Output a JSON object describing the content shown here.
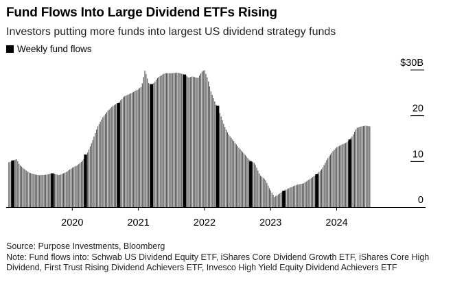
{
  "header": {
    "title": "Fund Flows Into Large Dividend ETFs Rising",
    "subtitle": "Investors putting more funds into largest US dividend strategy funds"
  },
  "legend": {
    "label": "Weekly fund flows",
    "color": "#000000"
  },
  "footer": {
    "source": "Source: Purpose Investments, Bloomberg",
    "note": "Note: Fund flows into: Schwab US Dividend Equity ETF, iShares Core Dividend Growth ETF, iShares Core High Dividend, First Trust Rising Dividend Achievers ETF, Invesco High Yield Equity Dividend Achievers ETF"
  },
  "chart_data": {
    "type": "bar",
    "title": "Fund Flows Into Large Dividend ETFs Rising",
    "subtitle": "Investors putting more funds into largest US dividend strategy funds",
    "xlabel": "",
    "ylabel": "",
    "y_unit": "$B",
    "ylim": [
      0,
      30
    ],
    "yticks": [
      0,
      10,
      20,
      30
    ],
    "ytick_labels": [
      "0",
      "10",
      "20",
      "$30B"
    ],
    "xlim": [
      2019.0,
      2024.95
    ],
    "xticks": [
      2020,
      2021,
      2022,
      2023,
      2024
    ],
    "xtick_labels": [
      "2020",
      "2021",
      "2022",
      "2023",
      "2024"
    ],
    "bar_color": "#555555",
    "highlight_color": "#000000",
    "grid": false,
    "legend_position": "top-left",
    "series": [
      {
        "name": "Weekly fund flows",
        "points": [
          [
            2019.04,
            9.8
          ],
          [
            2019.1,
            10.2
          ],
          [
            2019.16,
            10.5
          ],
          [
            2019.2,
            9.3
          ],
          [
            2019.26,
            8.5
          ],
          [
            2019.34,
            7.6
          ],
          [
            2019.42,
            7.2
          ],
          [
            2019.5,
            7.0
          ],
          [
            2019.6,
            7.1
          ],
          [
            2019.7,
            7.4
          ],
          [
            2019.8,
            7.0
          ],
          [
            2019.9,
            7.6
          ],
          [
            2020.0,
            8.6
          ],
          [
            2020.08,
            9.2
          ],
          [
            2020.16,
            10.2
          ],
          [
            2020.22,
            11.5
          ],
          [
            2020.3,
            14.3
          ],
          [
            2020.38,
            17.5
          ],
          [
            2020.46,
            19.6
          ],
          [
            2020.54,
            21.1
          ],
          [
            2020.62,
            22.2
          ],
          [
            2020.7,
            22.8
          ],
          [
            2020.78,
            24.2
          ],
          [
            2020.86,
            24.7
          ],
          [
            2020.94,
            25.3
          ],
          [
            2021.0,
            25.8
          ],
          [
            2021.05,
            26.4
          ],
          [
            2021.1,
            30.0
          ],
          [
            2021.16,
            26.9
          ],
          [
            2021.22,
            26.9
          ],
          [
            2021.3,
            28.4
          ],
          [
            2021.4,
            29.3
          ],
          [
            2021.5,
            29.3
          ],
          [
            2021.6,
            29.4
          ],
          [
            2021.7,
            29.0
          ],
          [
            2021.76,
            28.3
          ],
          [
            2021.82,
            28.6
          ],
          [
            2021.9,
            28.2
          ],
          [
            2021.96,
            29.6
          ],
          [
            2022.0,
            30.0
          ],
          [
            2022.05,
            28.0
          ],
          [
            2022.1,
            25.2
          ],
          [
            2022.18,
            22.2
          ],
          [
            2022.24,
            20.3
          ],
          [
            2022.3,
            17.8
          ],
          [
            2022.36,
            16.0
          ],
          [
            2022.44,
            14.5
          ],
          [
            2022.52,
            13.0
          ],
          [
            2022.6,
            11.7
          ],
          [
            2022.68,
            10.3
          ],
          [
            2022.76,
            9.6
          ],
          [
            2022.84,
            7.0
          ],
          [
            2022.92,
            6.0
          ],
          [
            2022.98,
            4.2
          ],
          [
            2023.06,
            2.2
          ],
          [
            2023.12,
            2.8
          ],
          [
            2023.2,
            3.6
          ],
          [
            2023.3,
            4.3
          ],
          [
            2023.4,
            4.9
          ],
          [
            2023.5,
            5.2
          ],
          [
            2023.6,
            6.2
          ],
          [
            2023.7,
            7.2
          ],
          [
            2023.78,
            8.4
          ],
          [
            2023.86,
            10.6
          ],
          [
            2023.94,
            12.2
          ],
          [
            2024.0,
            13.1
          ],
          [
            2024.08,
            13.7
          ],
          [
            2024.16,
            14.2
          ],
          [
            2024.24,
            15.6
          ],
          [
            2024.3,
            17.3
          ],
          [
            2024.36,
            17.6
          ],
          [
            2024.44,
            17.8
          ],
          [
            2024.52,
            17.6
          ]
        ]
      }
    ],
    "highlighted_bars": [
      [
        2019.1,
        10.2
      ],
      [
        2019.7,
        7.4
      ],
      [
        2020.2,
        11.5
      ],
      [
        2020.7,
        22.8
      ],
      [
        2021.2,
        26.9
      ],
      [
        2021.7,
        29.0
      ],
      [
        2022.2,
        22.2
      ],
      [
        2022.7,
        10.0
      ],
      [
        2023.2,
        3.6
      ],
      [
        2023.7,
        7.2
      ],
      [
        2024.2,
        14.8
      ]
    ]
  }
}
